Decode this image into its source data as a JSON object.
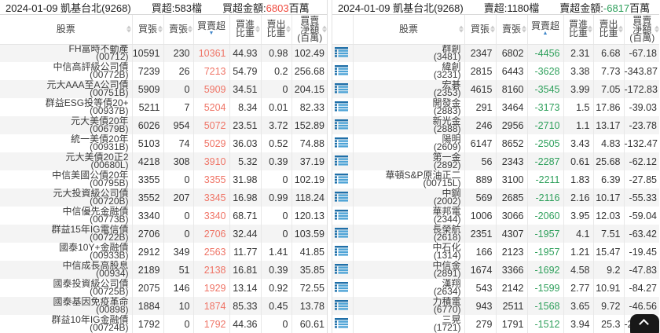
{
  "colors": {
    "header_red": "#ef4a3e",
    "cell_red": "#ef7466",
    "green": "#2fa05c",
    "icon_blue": "#2e86c1"
  },
  "columns": {
    "stock": "股票",
    "buy": "買張",
    "sell": "賣張",
    "net": "買賣超",
    "buy_ratio": "買進\n比重",
    "sell_ratio": "賣出\n比重",
    "amount": "買賣\n淨額\n(百萬)"
  },
  "left": {
    "title": "2024-01-09 凱基台北(9268)",
    "count": "買超:583檔",
    "amt_prefix": "買超金額:",
    "amt_value": "6803",
    "amt_suffix": "百萬",
    "sort_glyph": "▼",
    "rows": [
      {
        "name": "FH富時不動產",
        "code": "(00712)",
        "buy": "10591",
        "sell": "230",
        "net": "10361",
        "buy_ratio": "44.93",
        "sell_ratio": "0.98",
        "amount": "102.49"
      },
      {
        "name": "中信高評級公司債",
        "code": "(00772B)",
        "buy": "7239",
        "sell": "26",
        "net": "7213",
        "buy_ratio": "54.79",
        "sell_ratio": "0.2",
        "amount": "256.68"
      },
      {
        "name": "元大AAA至A公司債",
        "code": "(00751B)",
        "buy": "5909",
        "sell": "0",
        "net": "5909",
        "buy_ratio": "34.51",
        "sell_ratio": "0",
        "amount": "204.15"
      },
      {
        "name": "群益ESG投等債20+",
        "code": "(00937B)",
        "buy": "5211",
        "sell": "7",
        "net": "5204",
        "buy_ratio": "8.34",
        "sell_ratio": "0.01",
        "amount": "82.33"
      },
      {
        "name": "元大美債20年",
        "code": "(00679B)",
        "buy": "6026",
        "sell": "954",
        "net": "5072",
        "buy_ratio": "23.51",
        "sell_ratio": "3.72",
        "amount": "152.89"
      },
      {
        "name": "統一美債20年",
        "code": "(00931B)",
        "buy": "5103",
        "sell": "74",
        "net": "5029",
        "buy_ratio": "36.03",
        "sell_ratio": "0.52",
        "amount": "74.88"
      },
      {
        "name": "元大美債20正2",
        "code": "(00680L)",
        "buy": "4218",
        "sell": "308",
        "net": "3910",
        "buy_ratio": "5.32",
        "sell_ratio": "0.39",
        "amount": "37.19"
      },
      {
        "name": "中信美國公債20年",
        "code": "(00795B)",
        "buy": "3355",
        "sell": "0",
        "net": "3355",
        "buy_ratio": "31.98",
        "sell_ratio": "0",
        "amount": "102.19"
      },
      {
        "name": "元大投資級公司債",
        "code": "(00720B)",
        "buy": "3552",
        "sell": "207",
        "net": "3345",
        "buy_ratio": "16.98",
        "sell_ratio": "0.99",
        "amount": "118.24"
      },
      {
        "name": "中信優先金融債",
        "code": "(00773B)",
        "buy": "3340",
        "sell": "0",
        "net": "3340",
        "buy_ratio": "68.71",
        "sell_ratio": "0",
        "amount": "120.13"
      },
      {
        "name": "群益15年IG電信債",
        "code": "(00722B)",
        "buy": "2706",
        "sell": "0",
        "net": "2706",
        "buy_ratio": "32.44",
        "sell_ratio": "0",
        "amount": "103.59"
      },
      {
        "name": "國泰10Y+金融債",
        "code": "(00933B)",
        "buy": "2912",
        "sell": "349",
        "net": "2563",
        "buy_ratio": "11.77",
        "sell_ratio": "1.41",
        "amount": "41.85"
      },
      {
        "name": "中信成長高股息",
        "code": "(00934)",
        "buy": "2189",
        "sell": "51",
        "net": "2138",
        "buy_ratio": "16.81",
        "sell_ratio": "0.39",
        "amount": "35.85"
      },
      {
        "name": "國泰投資級公司債",
        "code": "(00725B)",
        "buy": "2075",
        "sell": "146",
        "net": "1929",
        "buy_ratio": "13.14",
        "sell_ratio": "0.92",
        "amount": "72.55"
      },
      {
        "name": "國泰基因免疫革命",
        "code": "(00898)",
        "buy": "1884",
        "sell": "10",
        "net": "1874",
        "buy_ratio": "85.33",
        "sell_ratio": "0.45",
        "amount": "13.78"
      },
      {
        "name": "群益10年IG金融債",
        "code": "(00724B)",
        "buy": "1792",
        "sell": "0",
        "net": "1792",
        "buy_ratio": "44.36",
        "sell_ratio": "0",
        "amount": "60.61"
      }
    ]
  },
  "right": {
    "title": "2024-01-09 凱基台北(9268)",
    "count": "賣超:1180檔",
    "amt_prefix": "賣超金額:",
    "amt_value": "-6817",
    "amt_suffix": "百萬",
    "sort_glyph": "▲",
    "rows": [
      {
        "name": "群創",
        "code": "(3481)",
        "buy": "2347",
        "sell": "6802",
        "net": "-4456",
        "buy_ratio": "2.31",
        "sell_ratio": "6.68",
        "amount": "-67.18"
      },
      {
        "name": "緯創",
        "code": "(3231)",
        "buy": "2815",
        "sell": "6443",
        "net": "-3628",
        "buy_ratio": "3.38",
        "sell_ratio": "7.73",
        "amount": "-343.87"
      },
      {
        "name": "宏碁",
        "code": "(2353)",
        "buy": "4615",
        "sell": "8160",
        "net": "-3545",
        "buy_ratio": "3.99",
        "sell_ratio": "7.05",
        "amount": "-172.83"
      },
      {
        "name": "開發金",
        "code": "(2883)",
        "buy": "291",
        "sell": "3464",
        "net": "-3173",
        "buy_ratio": "1.5",
        "sell_ratio": "17.86",
        "amount": "-39.03"
      },
      {
        "name": "新光金",
        "code": "(2888)",
        "buy": "246",
        "sell": "2956",
        "net": "-2710",
        "buy_ratio": "1.1",
        "sell_ratio": "13.17",
        "amount": "-23.78"
      },
      {
        "name": "陽明",
        "code": "(2609)",
        "buy": "6147",
        "sell": "8652",
        "net": "-2505",
        "buy_ratio": "3.43",
        "sell_ratio": "4.83",
        "amount": "-132.47"
      },
      {
        "name": "第一金",
        "code": "(2892)",
        "buy": "56",
        "sell": "2343",
        "net": "-2287",
        "buy_ratio": "0.61",
        "sell_ratio": "25.68",
        "amount": "-62.12"
      },
      {
        "name": "華頓S&P原油正二",
        "code": "(00715L)",
        "buy": "889",
        "sell": "3100",
        "net": "-2211",
        "buy_ratio": "1.83",
        "sell_ratio": "6.39",
        "amount": "-27.85"
      },
      {
        "name": "中鋼",
        "code": "(2002)",
        "buy": "569",
        "sell": "2685",
        "net": "-2116",
        "buy_ratio": "2.16",
        "sell_ratio": "10.17",
        "amount": "-55.33"
      },
      {
        "name": "華邦電",
        "code": "(2344)",
        "buy": "1006",
        "sell": "3066",
        "net": "-2060",
        "buy_ratio": "3.95",
        "sell_ratio": "12.03",
        "amount": "-59.04"
      },
      {
        "name": "長榮航",
        "code": "(2618)",
        "buy": "2351",
        "sell": "4307",
        "net": "-1957",
        "buy_ratio": "4.1",
        "sell_ratio": "7.51",
        "amount": "-63.42"
      },
      {
        "name": "中石化",
        "code": "(1314)",
        "buy": "166",
        "sell": "2123",
        "net": "-1957",
        "buy_ratio": "1.21",
        "sell_ratio": "15.47",
        "amount": "-19.45"
      },
      {
        "name": "中信金",
        "code": "(2891)",
        "buy": "1674",
        "sell": "3366",
        "net": "-1692",
        "buy_ratio": "4.58",
        "sell_ratio": "9.2",
        "amount": "-47.83"
      },
      {
        "name": "漢翔",
        "code": "(2634)",
        "buy": "543",
        "sell": "2142",
        "net": "-1599",
        "buy_ratio": "2.77",
        "sell_ratio": "10.91",
        "amount": "-84.27"
      },
      {
        "name": "力積電",
        "code": "(6770)",
        "buy": "943",
        "sell": "2511",
        "net": "-1568",
        "buy_ratio": "3.65",
        "sell_ratio": "9.72",
        "amount": "-46.56"
      },
      {
        "name": "三晃",
        "code": "(1721)",
        "buy": "279",
        "sell": "1791",
        "net": "-1512",
        "buy_ratio": "3.94",
        "sell_ratio": "25.3",
        "amount": "-23.",
        "clip": true
      }
    ]
  }
}
